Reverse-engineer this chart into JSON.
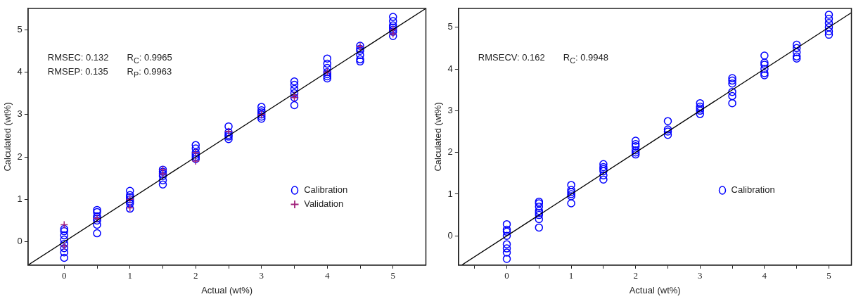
{
  "chart_data": [
    {
      "type": "scatter",
      "xlabel": "Actual (wt%)",
      "ylabel": "Calculated (wt%)",
      "xlim": [
        -0.55,
        5.5
      ],
      "ylim": [
        -0.55,
        5.5
      ],
      "xticks": [
        0,
        {
          "value": 0.5,
          "label": null
        },
        1,
        {
          "value": 1.5,
          "label": null
        },
        2,
        {
          "value": 2.5,
          "label": null
        },
        3,
        {
          "value": 3.5,
          "label": null
        },
        4,
        {
          "value": 4.5,
          "label": null
        },
        5
      ],
      "yticks": [
        0,
        1,
        2,
        3,
        4,
        5
      ],
      "grid": false,
      "legend": "right",
      "annotations": [
        "RMSEC: 0.132",
        "R$_{C}$: 0.9965",
        "RMSEP: 0.135",
        "R$_{P}$: 0.9963"
      ],
      "series": [
        {
          "name": "Calibration",
          "color": "#0000ff",
          "marker": "circle",
          "x": [
            0,
            0,
            0,
            0,
            0,
            0,
            0,
            0,
            0.5,
            0.5,
            0.5,
            0.5,
            0.5,
            0.5,
            0.5,
            1,
            1,
            1,
            1,
            1,
            1,
            1,
            1.5,
            1.5,
            1.5,
            1.5,
            1.5,
            1.5,
            2,
            2,
            2,
            2,
            2,
            2,
            2.5,
            2.5,
            2.5,
            2.5,
            2.5,
            3,
            3,
            3,
            3,
            3,
            3,
            3.5,
            3.5,
            3.5,
            3.5,
            3.5,
            3.5,
            4,
            4,
            4,
            4,
            4,
            4,
            4,
            4.5,
            4.5,
            4.5,
            4.5,
            4.5,
            4.5,
            5,
            5,
            5,
            5,
            5,
            5,
            5
          ],
          "values": [
            -0.38,
            -0.25,
            -0.15,
            -0.05,
            0.05,
            0.15,
            0.25,
            0.3,
            0.2,
            0.4,
            0.5,
            0.55,
            0.6,
            0.7,
            0.75,
            0.78,
            0.9,
            0.95,
            1.0,
            1.05,
            1.1,
            1.2,
            1.35,
            1.45,
            1.55,
            1.6,
            1.65,
            1.7,
            1.95,
            2.0,
            2.05,
            2.1,
            2.2,
            2.28,
            2.42,
            2.48,
            2.52,
            2.58,
            2.72,
            2.9,
            2.95,
            3.0,
            3.05,
            3.1,
            3.18,
            3.22,
            3.4,
            3.5,
            3.6,
            3.7,
            3.78,
            3.85,
            3.9,
            3.95,
            4.0,
            4.1,
            4.2,
            4.32,
            4.25,
            4.3,
            4.4,
            4.5,
            4.55,
            4.62,
            4.85,
            4.95,
            5.0,
            5.05,
            5.1,
            5.2,
            5.3
          ]
        },
        {
          "name": "Validation",
          "color": "#a0207a",
          "marker": "cross",
          "x": [
            0,
            0,
            0.5,
            1,
            1,
            1.5,
            1.5,
            2,
            2,
            2.5,
            3,
            3.5,
            3.5,
            4,
            4.5,
            5,
            5
          ],
          "values": [
            0.4,
            -0.1,
            0.55,
            0.8,
            1.0,
            1.7,
            1.6,
            1.9,
            2.1,
            2.6,
            3.0,
            3.4,
            3.45,
            4.0,
            4.6,
            5.0,
            4.9
          ]
        },
        {
          "type": "line",
          "color": "#000000",
          "x": [
            -0.55,
            5.5
          ],
          "values": [
            -0.55,
            5.5
          ]
        }
      ]
    },
    {
      "type": "scatter",
      "xlabel": "Actual (wt%)",
      "ylabel": "Calculated (wt%)",
      "xlim": [
        -0.75,
        5.35
      ],
      "ylim": [
        -0.7,
        5.45
      ],
      "xticks": [
        {
          "value": -0.5,
          "label": null
        },
        0,
        {
          "value": 0.5,
          "label": null
        },
        1,
        {
          "value": 1.5,
          "label": null
        },
        2,
        {
          "value": 2.5,
          "label": null
        },
        3,
        {
          "value": 3.5,
          "label": null
        },
        4,
        {
          "value": 4.5,
          "label": null
        },
        5
      ],
      "yticks": [
        0,
        1,
        2,
        3,
        4,
        5
      ],
      "grid": false,
      "legend": "right",
      "annotations": [
        "RMSECV: 0.162",
        "R$_{C}$: 0.9948"
      ],
      "series": [
        {
          "name": "Calibration",
          "color": "#0000ff",
          "marker": "circle",
          "x": [
            0,
            0,
            0,
            0,
            0,
            0,
            0,
            0,
            0.5,
            0.5,
            0.5,
            0.5,
            0.5,
            0.5,
            0.5,
            0.5,
            1,
            1,
            1,
            1,
            1,
            1,
            1.5,
            1.5,
            1.5,
            1.5,
            1.5,
            1.5,
            2,
            2,
            2,
            2,
            2,
            2,
            2.5,
            2.5,
            2.5,
            2.5,
            3,
            3,
            3,
            3,
            3,
            3.5,
            3.5,
            3.5,
            3.5,
            3.5,
            3.5,
            4,
            4,
            4,
            4,
            4,
            4,
            4.5,
            4.5,
            4.5,
            4.5,
            4.5,
            5,
            5,
            5,
            5,
            5,
            5
          ],
          "values": [
            -0.55,
            -0.4,
            -0.3,
            -0.2,
            0,
            0.1,
            0.15,
            0.28,
            0.2,
            0.4,
            0.5,
            0.55,
            0.6,
            0.7,
            0.78,
            0.82,
            0.78,
            0.95,
            1.0,
            1.05,
            1.1,
            1.22,
            1.35,
            1.45,
            1.55,
            1.6,
            1.65,
            1.72,
            1.95,
            2.0,
            2.05,
            2.15,
            2.2,
            2.28,
            2.42,
            2.5,
            2.55,
            2.75,
            2.92,
            3.0,
            3.05,
            3.1,
            3.18,
            3.18,
            3.35,
            3.45,
            3.65,
            3.72,
            3.78,
            3.85,
            3.9,
            4.0,
            4.1,
            4.15,
            4.32,
            4.25,
            4.3,
            4.4,
            4.5,
            4.58,
            4.82,
            4.9,
            5.0,
            5.1,
            5.2,
            5.3
          ]
        },
        {
          "type": "line",
          "color": "#000000",
          "x": [
            -0.7,
            5.35
          ],
          "values": [
            -0.7,
            5.35
          ]
        }
      ]
    }
  ]
}
